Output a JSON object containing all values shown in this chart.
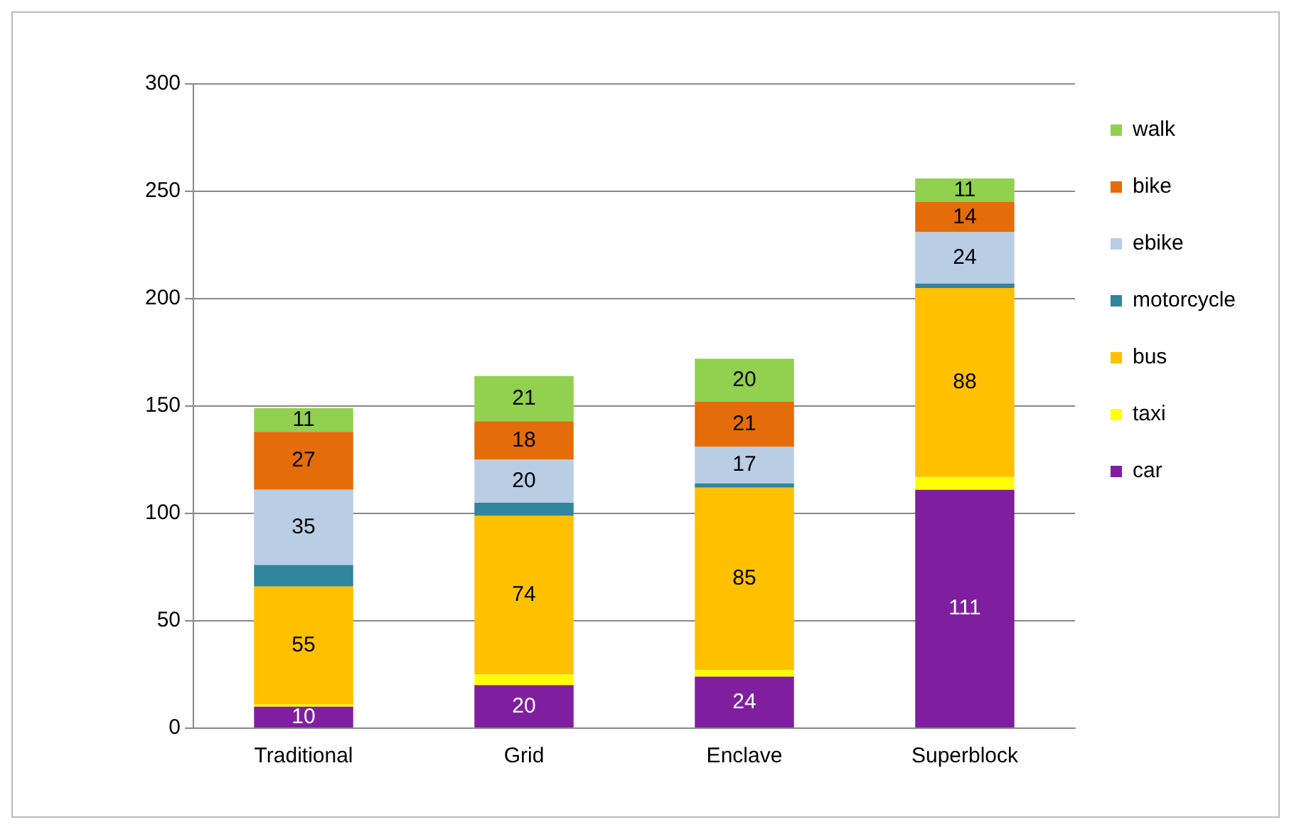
{
  "chart_data": {
    "type": "bar",
    "stacked": true,
    "categories": [
      "Traditional",
      "Grid",
      "Enclave",
      "Superblock"
    ],
    "ylim": [
      0,
      300
    ],
    "yticks": [
      0,
      50,
      100,
      150,
      200,
      250,
      300
    ],
    "grid": "y",
    "legend": "right",
    "series": [
      {
        "name": "car",
        "color": "#7f1f9f",
        "values": [
          10,
          20,
          24,
          111
        ],
        "value_labels": [
          "10",
          "20",
          "24",
          "111"
        ]
      },
      {
        "name": "taxi",
        "color": "#ffff00",
        "values": [
          1,
          5,
          3,
          6
        ],
        "value_labels": [
          null,
          null,
          null,
          null
        ]
      },
      {
        "name": "bus",
        "color": "#ffc000",
        "values": [
          55,
          74,
          85,
          88
        ],
        "value_labels": [
          "55",
          "74",
          "85",
          "88"
        ]
      },
      {
        "name": "motorcycle",
        "color": "#31859c",
        "values": [
          10,
          6,
          2,
          2
        ],
        "value_labels": [
          null,
          null,
          null,
          null
        ]
      },
      {
        "name": "ebike",
        "color": "#b9cde5",
        "values": [
          35,
          20,
          17,
          24
        ],
        "value_labels": [
          "35",
          "20",
          "17",
          "24"
        ]
      },
      {
        "name": "bike",
        "color": "#e46c0a",
        "values": [
          27,
          18,
          21,
          14
        ],
        "value_labels": [
          "27",
          "18",
          "21",
          "14"
        ]
      },
      {
        "name": "walk",
        "color": "#92d050",
        "values": [
          11,
          21,
          20,
          11
        ],
        "value_labels": [
          "11",
          "21",
          "20",
          "11"
        ]
      }
    ]
  }
}
